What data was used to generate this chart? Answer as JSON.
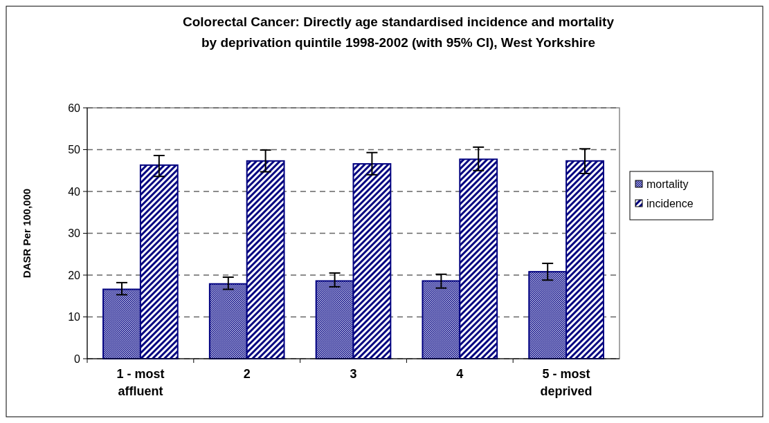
{
  "chart_data": {
    "type": "bar",
    "title": "Colorectal Cancer: Directly age standardised incidence and mortality\nby deprivation quintile 1998-2002 (with 95% CI), West Yorkshire",
    "ylabel": "DASR Per 100,000",
    "categories": [
      "1 - most\naffluent",
      "2",
      "3",
      "4",
      "5 - most\ndeprived"
    ],
    "series": [
      {
        "name": "mortality",
        "color": "#000080",
        "values": [
          16.6,
          17.9,
          18.6,
          18.6,
          20.8
        ],
        "errors": [
          [
            15.3,
            18.2
          ],
          [
            16.6,
            19.5
          ],
          [
            17.2,
            20.5
          ],
          [
            16.9,
            20.2
          ],
          [
            18.8,
            22.8
          ]
        ]
      },
      {
        "name": "incidence",
        "color": "#000080",
        "values": [
          46.3,
          47.3,
          46.6,
          47.7,
          47.3
        ],
        "errors": [
          [
            43.6,
            48.6
          ],
          [
            44.7,
            49.9
          ],
          [
            44.0,
            49.3
          ],
          [
            45.0,
            50.6
          ],
          [
            44.3,
            50.2
          ]
        ]
      }
    ],
    "ylim": [
      0,
      60
    ],
    "yticks": [
      0,
      10,
      20,
      30,
      40,
      50,
      60
    ],
    "grid": "y",
    "legend": "right"
  }
}
